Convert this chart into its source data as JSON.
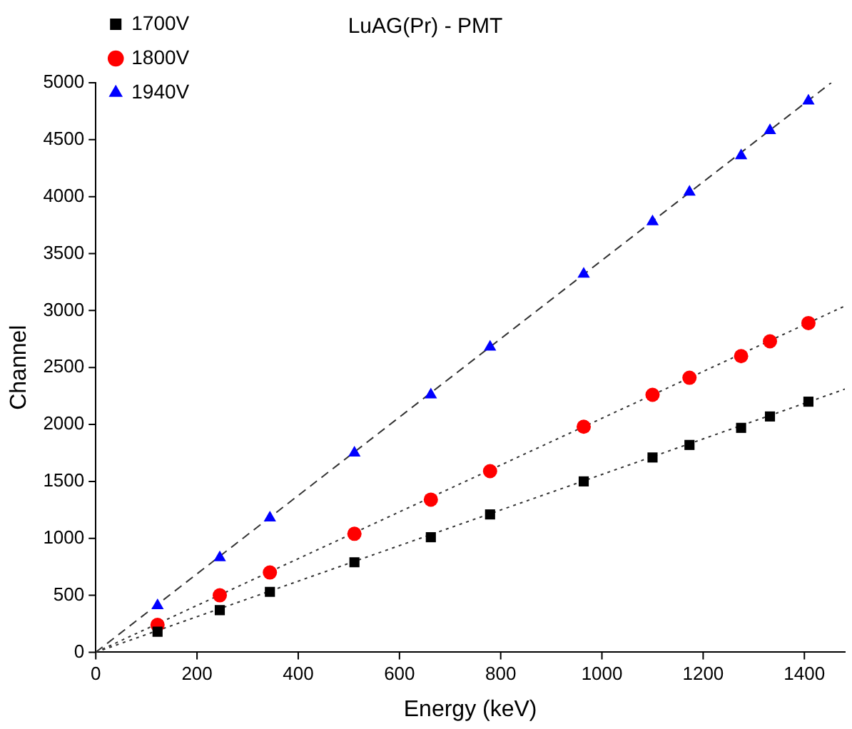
{
  "chart_data": {
    "type": "scatter",
    "title": "LuAG(Pr) - PMT",
    "xlabel": "Energy (keV)",
    "ylabel": "Channel",
    "x": [
      122,
      245,
      344,
      511,
      662,
      779,
      964,
      1100,
      1173,
      1275,
      1332,
      1408
    ],
    "series": [
      {
        "name": "1700V",
        "color": "#000000",
        "marker": "square",
        "values": [
          180,
          370,
          530,
          790,
          1010,
          1210,
          1500,
          1710,
          1820,
          1970,
          2070,
          2200
        ]
      },
      {
        "name": "1800V",
        "color": "#ff0000",
        "marker": "circle",
        "values": [
          240,
          500,
          700,
          1040,
          1340,
          1590,
          1980,
          2260,
          2410,
          2600,
          2730,
          2890
        ]
      },
      {
        "name": "1940V",
        "color": "#0000ff",
        "marker": "triangle",
        "values": [
          410,
          830,
          1180,
          1750,
          2260,
          2680,
          3320,
          3780,
          4040,
          4360,
          4580,
          4840
        ]
      },
      {
        "type": "line",
        "color": "#333333",
        "line_style": "dotted",
        "x": [
          0,
          1480
        ],
        "values": [
          0,
          2310
        ]
      },
      {
        "type": "line",
        "color": "#333333",
        "line_style": "dotted",
        "x": [
          0,
          1480
        ],
        "values": [
          0,
          3040
        ]
      },
      {
        "type": "line",
        "color": "#333333",
        "line_style": "dashed",
        "x": [
          0,
          1453
        ],
        "values": [
          0,
          5000
        ]
      }
    ],
    "xlim": [
      0,
      1480
    ],
    "xticks": [
      0,
      200,
      400,
      600,
      800,
      1000,
      1200,
      1400
    ],
    "ylim": [
      0,
      5000
    ],
    "yticks": [
      0,
      500,
      1000,
      1500,
      2000,
      2500,
      3000,
      3500,
      4000,
      4500,
      5000
    ],
    "grid": false,
    "legend": "top left"
  }
}
